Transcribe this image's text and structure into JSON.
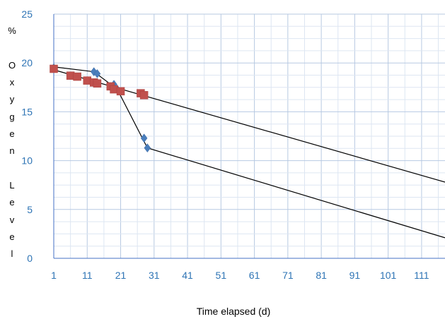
{
  "chart_data": {
    "type": "scatter",
    "xlabel": "Time elapsed (d)",
    "ylabel_chars": [
      "%",
      "O",
      "x",
      "y",
      "g",
      "e",
      "n",
      "L",
      "e",
      "v",
      "e",
      "l"
    ],
    "xlim": [
      1,
      118
    ],
    "ylim": [
      0,
      25
    ],
    "x_ticks": [
      "1",
      "11",
      "21",
      "31",
      "41",
      "51",
      "61",
      "71",
      "81",
      "91",
      "101",
      "111"
    ],
    "y_ticks": [
      "0",
      "5",
      "10",
      "15",
      "20",
      "25"
    ],
    "grid": true,
    "series": [
      {
        "marker": "diamond",
        "color": "#4a7ebb",
        "points": [
          [
            1,
            19.5
          ],
          [
            13,
            19.1
          ],
          [
            14,
            18.9
          ],
          [
            19,
            17.8
          ],
          [
            20,
            17.3
          ],
          [
            28,
            12.3
          ],
          [
            29,
            11.3
          ]
        ]
      },
      {
        "marker": "square",
        "color": "#c0504d",
        "points": [
          [
            1,
            19.4
          ],
          [
            6,
            18.7
          ],
          [
            8,
            18.6
          ],
          [
            11,
            18.2
          ],
          [
            13,
            18.0
          ],
          [
            14,
            17.9
          ],
          [
            18,
            17.6
          ],
          [
            19,
            17.3
          ],
          [
            21,
            17.1
          ],
          [
            27,
            16.9
          ],
          [
            28,
            16.7
          ]
        ]
      }
    ],
    "fit_lines": [
      {
        "color": "#000000",
        "points": [
          [
            1,
            19.6
          ],
          [
            13,
            19.1
          ],
          [
            20,
            17.3
          ],
          [
            29,
            11.3
          ],
          [
            118,
            2.1
          ]
        ]
      },
      {
        "color": "#000000",
        "points": [
          [
            1,
            19.3
          ],
          [
            118,
            7.8
          ]
        ]
      }
    ]
  }
}
